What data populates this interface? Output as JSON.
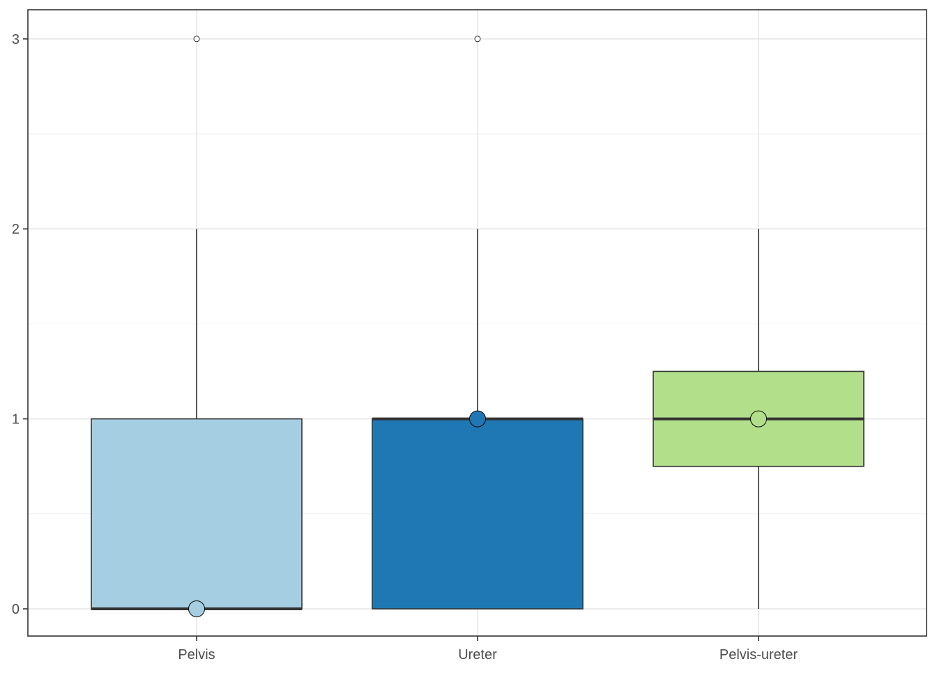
{
  "chart_data": {
    "type": "boxplot",
    "title": "",
    "xlabel": "",
    "ylabel": "",
    "ylim": [
      -0.15,
      3.15
    ],
    "yticks": [
      0,
      1,
      2,
      3
    ],
    "ytick_labels": [
      "0",
      "1",
      "2",
      "3"
    ],
    "minor_yticks": [
      0.5,
      1.5,
      2.5
    ],
    "grid": true,
    "legend": "none",
    "categories": [
      "Pelvis",
      "Ureter",
      "Pelvis-ureter"
    ],
    "boxes": [
      {
        "category": "Pelvis",
        "color": "#a6cee3",
        "whisker_low": 0,
        "q1": 0,
        "median": 0,
        "q3": 1,
        "whisker_high": 2,
        "mean": 0,
        "outliers": [
          3
        ]
      },
      {
        "category": "Ureter",
        "color": "#1f78b4",
        "whisker_low": 0,
        "q1": 0,
        "median": 1,
        "q3": 1,
        "whisker_high": 2,
        "mean": 1,
        "outliers": [
          3
        ]
      },
      {
        "category": "Pelvis-ureter",
        "color": "#b2df8a",
        "whisker_low": 0,
        "q1": 0.75,
        "median": 1,
        "q3": 1.25,
        "whisker_high": 2,
        "mean": 1,
        "outliers": []
      }
    ]
  }
}
